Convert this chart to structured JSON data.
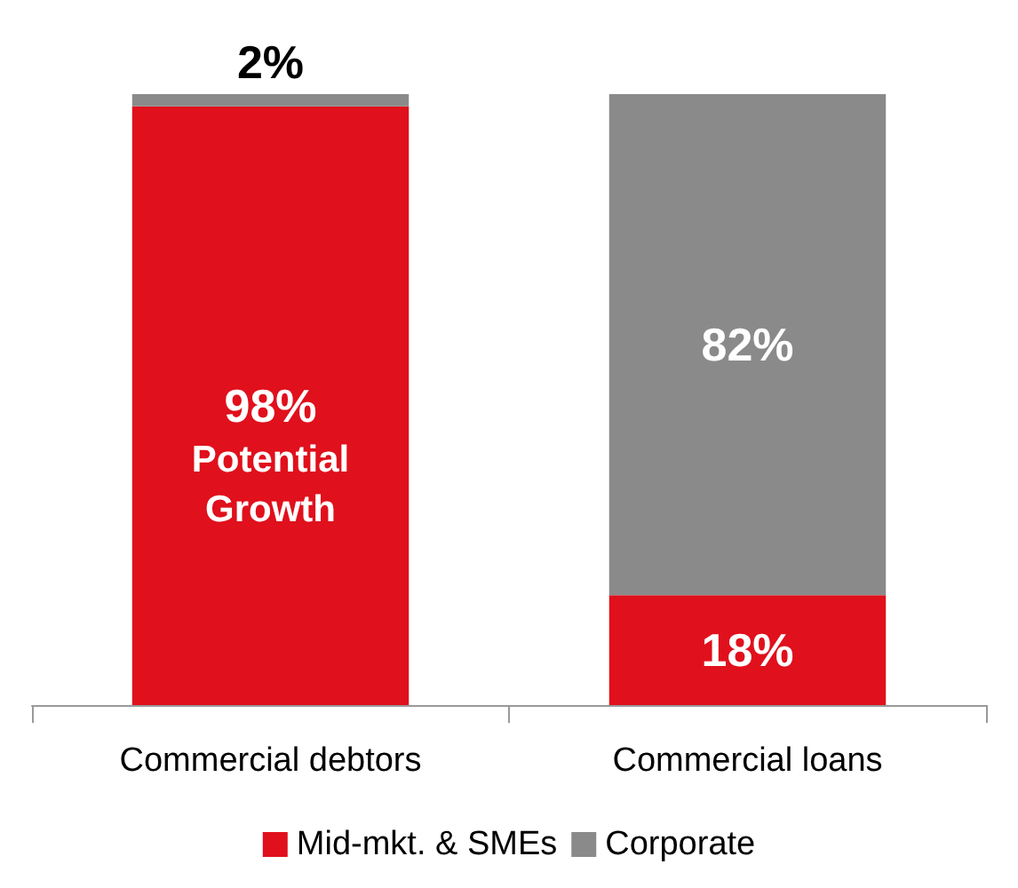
{
  "chart_data": {
    "type": "bar",
    "stacked": true,
    "categories": [
      "Commercial debtors",
      "Commercial loans"
    ],
    "series": [
      {
        "name": "Mid-mkt. & SMEs",
        "color": "#e0101c",
        "values": [
          98,
          18
        ],
        "value_labels": [
          "98%",
          "18%"
        ]
      },
      {
        "name": "Corporate",
        "color": "#8a8a8a",
        "values": [
          2,
          82
        ],
        "value_labels": [
          "2%",
          "82%"
        ]
      }
    ],
    "annotations": [
      "Potential Growth"
    ],
    "legend": "bottom",
    "grid": false
  }
}
